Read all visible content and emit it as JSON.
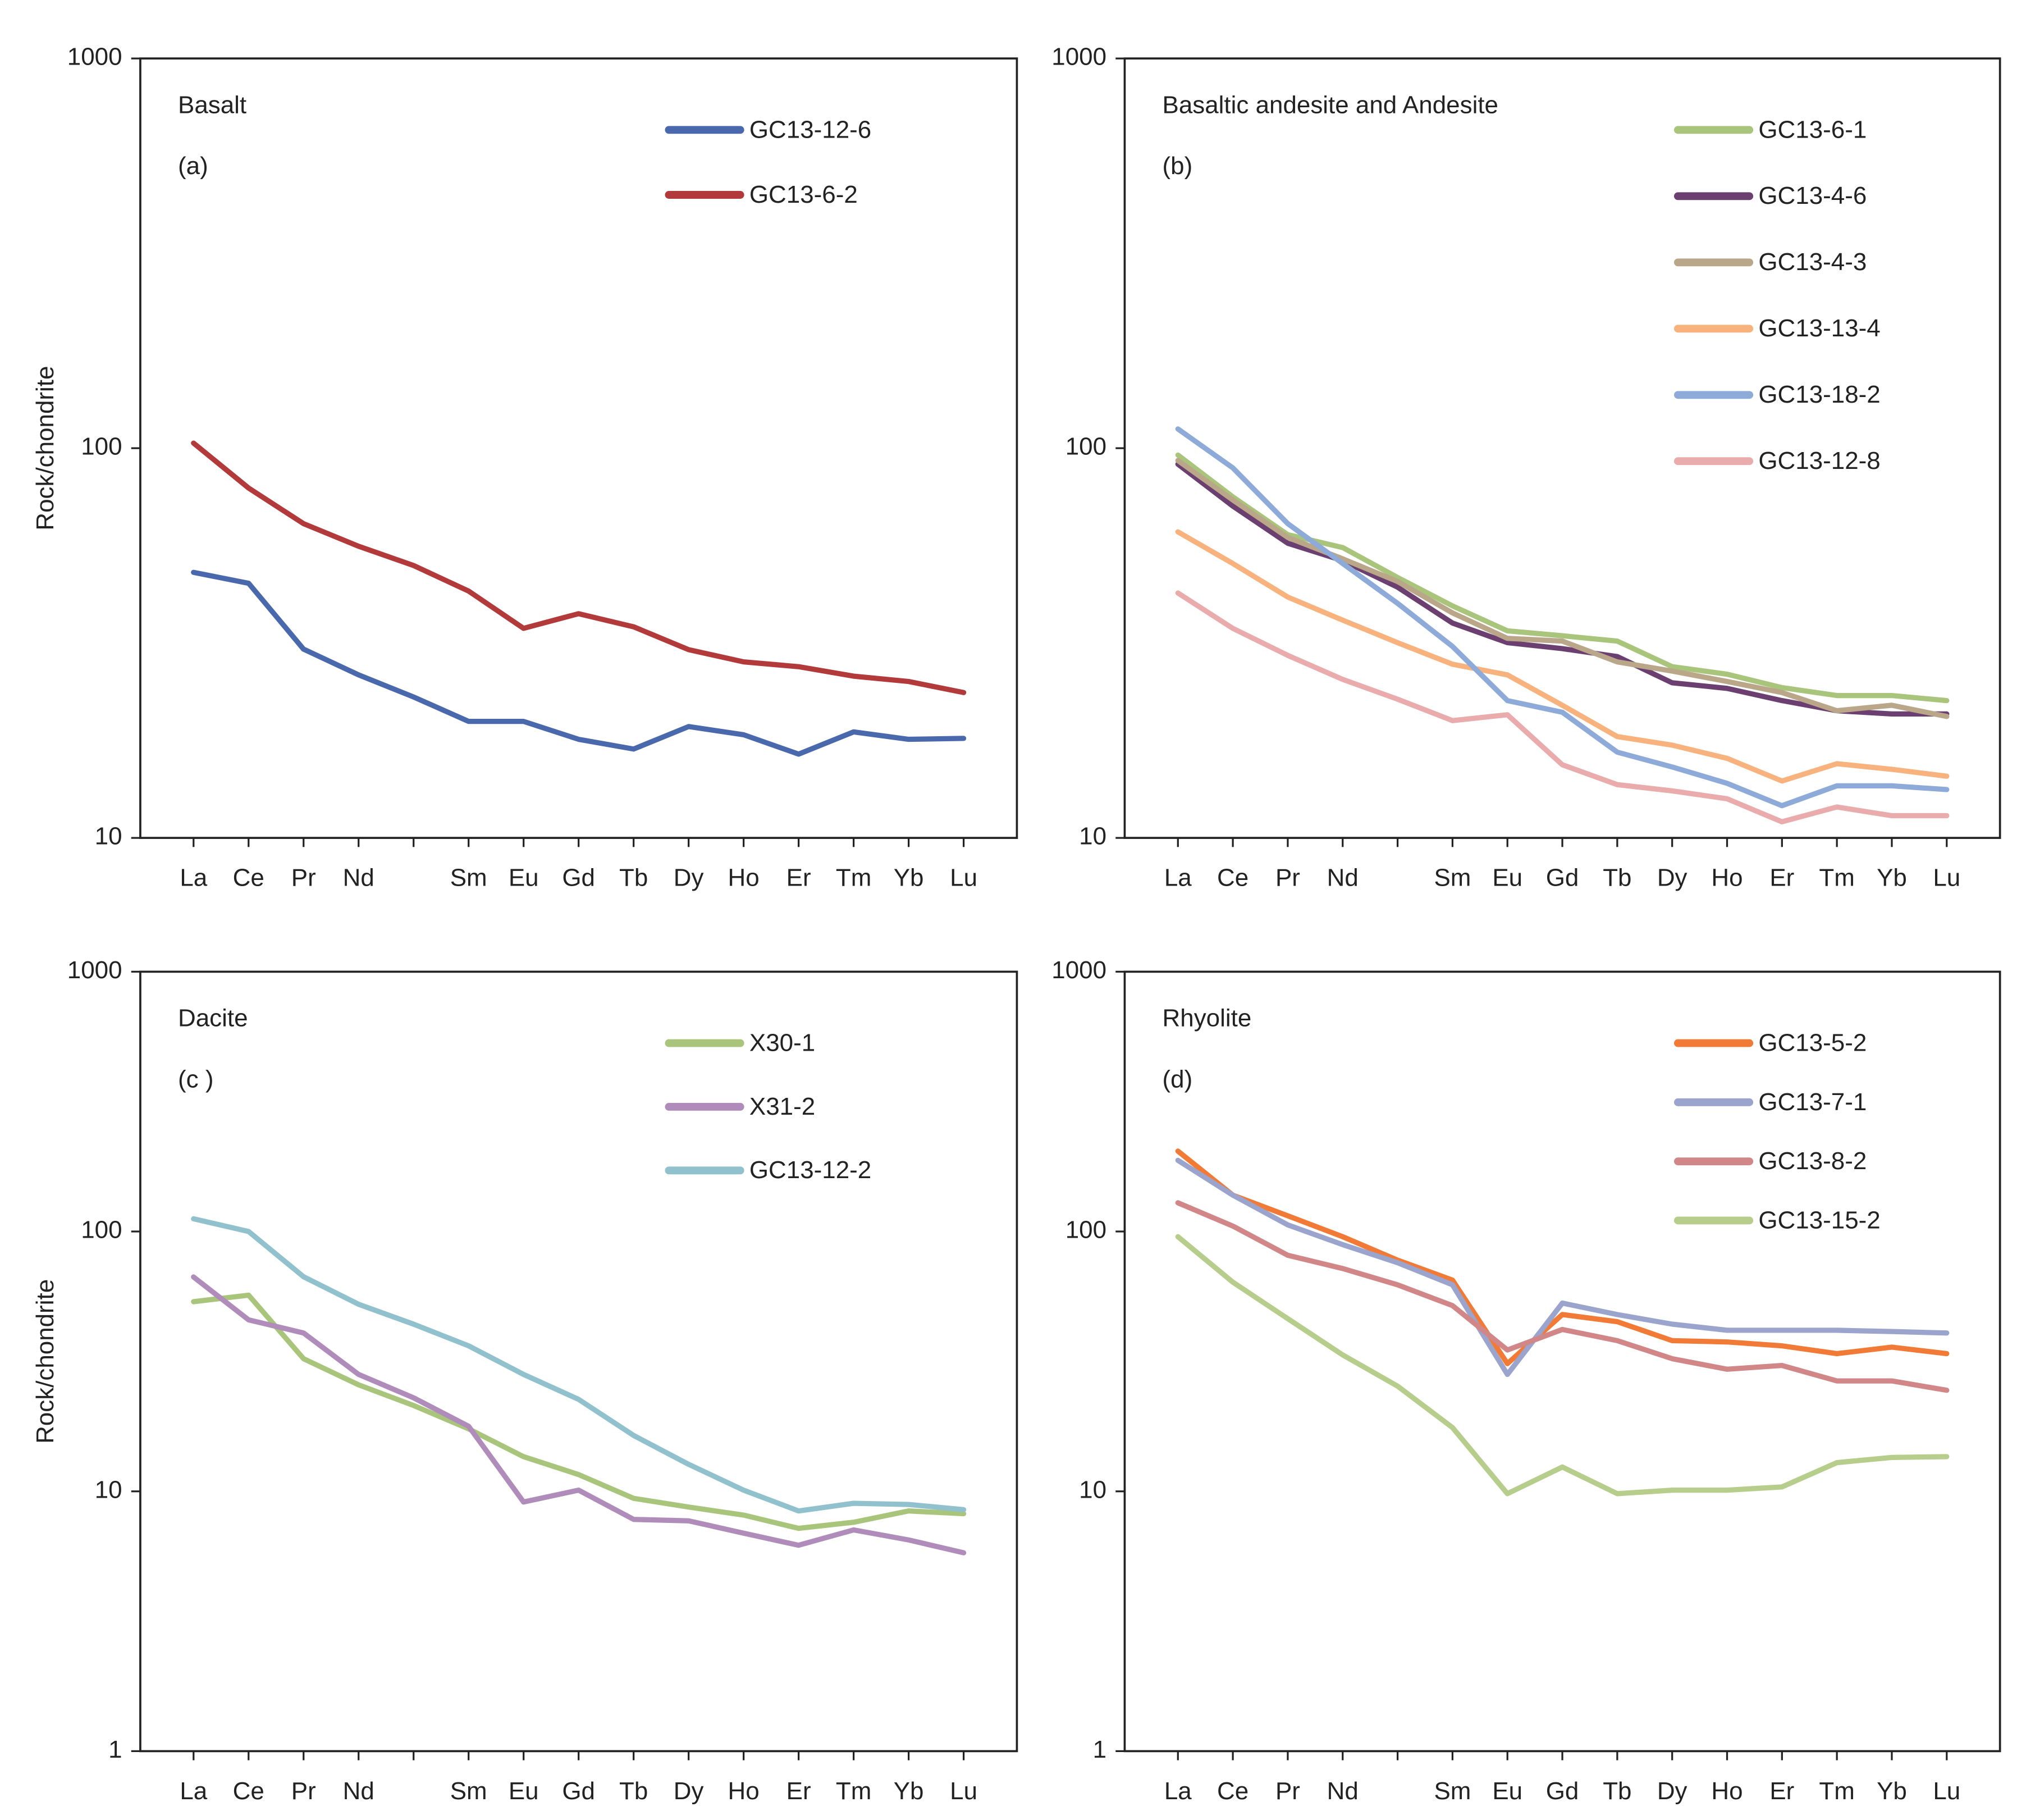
{
  "chart_data": [
    {
      "type": "line",
      "title": "Basalt",
      "panel_label": "(a)",
      "y_label": "Rock/chondrite",
      "log_scale": true,
      "categories": [
        "La",
        "Ce",
        "Pr",
        "Nd",
        null,
        "Sm",
        "Eu",
        "Gd",
        "Tb",
        "Dy",
        "Ho",
        "Er",
        "Tm",
        "Yb",
        "Lu"
      ],
      "ylim": [
        10,
        1000
      ],
      "yticks": [
        10,
        100,
        1000
      ],
      "series": [
        {
          "name": "GC13-12-6",
          "color": "#4a69ad",
          "values": [
            48,
            45,
            30.5,
            26.2,
            23,
            19.9,
            19.9,
            17.9,
            16.9,
            19.3,
            18.4,
            16.4,
            18.7,
            17.9,
            18
          ]
        },
        {
          "name": "GC13-6-2",
          "color": "#b23a3a",
          "values": [
            103,
            79,
            64,
            56,
            50,
            43,
            34.5,
            37.6,
            34.8,
            30.4,
            28.3,
            27.5,
            26,
            25.2,
            23.6
          ]
        }
      ]
    },
    {
      "type": "line",
      "title": "Basaltic andesite and Andesite",
      "panel_label": "(b)",
      "log_scale": true,
      "categories": [
        "La",
        "Ce",
        "Pr",
        "Nd",
        null,
        "Sm",
        "Eu",
        "Gd",
        "Tb",
        "Dy",
        "Ho",
        "Er",
        "Tm",
        "Yb",
        "Lu"
      ],
      "ylim": [
        10,
        1000
      ],
      "yticks": [
        10,
        100,
        1000
      ],
      "series": [
        {
          "name": "GC13-6-1",
          "color": "#a9c57c",
          "values": [
            96,
            75,
            60,
            55.6,
            46.6,
            39.4,
            34,
            33,
            32,
            27.5,
            26.3,
            24.3,
            23.2,
            23.2,
            22.5
          ]
        },
        {
          "name": "GC13-4-6",
          "color": "#6b3f6f",
          "values": [
            91,
            71,
            57,
            51.5,
            44,
            35.6,
            31.7,
            30.6,
            29.2,
            25,
            24.2,
            22.5,
            21.2,
            20.8,
            20.8
          ]
        },
        {
          "name": "GC13-4-3",
          "color": "#baa688",
          "values": [
            93,
            73.6,
            59,
            52,
            45.5,
            37.8,
            32.5,
            32,
            28.3,
            26.8,
            25.2,
            23.6,
            21.2,
            21.9,
            20.5
          ]
        },
        {
          "name": "GC13-13-4",
          "color": "#f8b27d",
          "values": [
            61,
            50.6,
            41.5,
            36.2,
            31.7,
            27.9,
            26.2,
            21.9,
            18.2,
            17.3,
            16,
            14,
            15.5,
            15,
            14.4
          ]
        },
        {
          "name": "GC13-18-2",
          "color": "#8daad9",
          "values": [
            112,
            89,
            64,
            50.6,
            40,
            31,
            22.5,
            21,
            16.6,
            15.2,
            13.8,
            12.1,
            13.6,
            13.6,
            13.3
          ]
        },
        {
          "name": "GC13-12-8",
          "color": "#e9abab",
          "values": [
            42.5,
            34.5,
            29.4,
            25.5,
            22.7,
            20,
            20.7,
            15.4,
            13.7,
            13.2,
            12.6,
            11,
            12,
            11.4,
            11.4
          ]
        }
      ]
    },
    {
      "type": "line",
      "title": "Dacite",
      "panel_label": "(c )",
      "y_label": "Rock/chondrite",
      "log_scale": true,
      "categories": [
        "La",
        "Ce",
        "Pr",
        "Nd",
        null,
        "Sm",
        "Eu",
        "Gd",
        "Tb",
        "Dy",
        "Ho",
        "Er",
        "Tm",
        "Yb",
        "Lu"
      ],
      "ylim": [
        1,
        1000
      ],
      "yticks": [
        1,
        10,
        100,
        1000
      ],
      "series": [
        {
          "name": "X30-1",
          "color": "#a9c57c",
          "values": [
            53.7,
            56.9,
            32.4,
            25.7,
            21.4,
            17.4,
            13.6,
            11.6,
            9.4,
            8.7,
            8.1,
            7.2,
            7.6,
            8.4,
            8.2
          ]
        },
        {
          "name": "X31-2",
          "color": "#b08cba",
          "values": [
            66.8,
            45.7,
            40.7,
            28.2,
            22.9,
            17.8,
            9.1,
            10.1,
            7.8,
            7.7,
            6.9,
            6.2,
            7.1,
            6.5,
            5.8
          ]
        },
        {
          "name": "GC13-12-2",
          "color": "#90c1cd",
          "values": [
            112,
            100,
            67,
            52.5,
            44,
            36.3,
            28.2,
            22.6,
            16.4,
            12.7,
            10.1,
            8.4,
            9,
            8.9,
            8.5
          ]
        }
      ]
    },
    {
      "type": "line",
      "title": "Rhyolite",
      "panel_label": "(d)",
      "log_scale": true,
      "categories": [
        "La",
        "Ce",
        "Pr",
        "Nd",
        null,
        "Sm",
        "Eu",
        "Gd",
        "Tb",
        "Dy",
        "Ho",
        "Er",
        "Tm",
        "Yb",
        "Lu"
      ],
      "ylim": [
        1,
        1000
      ],
      "yticks": [
        1,
        10,
        100,
        1000
      ],
      "series": [
        {
          "name": "GC13-5-2",
          "color": "#f17b36",
          "values": [
            204,
            138,
            115,
            95.5,
            77.6,
            65,
            31,
            47.9,
            45,
            38,
            37.6,
            36.3,
            33.9,
            35.9,
            33.9
          ]
        },
        {
          "name": "GC13-7-1",
          "color": "#9ba4cd",
          "values": [
            188,
            138,
            106,
            89,
            75.9,
            62.4,
            28.2,
            53,
            47.9,
            44,
            41.7,
            41.7,
            41.7,
            41.2,
            40.7
          ]
        },
        {
          "name": "GC13-8-2",
          "color": "#d18787",
          "values": [
            129,
            105,
            81,
            72,
            62.4,
            51.9,
            35,
            42,
            38,
            32.4,
            29.5,
            30.5,
            26.6,
            26.6,
            24.5
          ]
        },
        {
          "name": "GC13-15-2",
          "color": "#b6cd8c",
          "values": [
            95.5,
            63.8,
            46.2,
            33.5,
            25.4,
            17.6,
            9.8,
            12.4,
            9.8,
            10.1,
            10.1,
            10.4,
            12.9,
            13.5,
            13.6
          ]
        }
      ]
    }
  ]
}
